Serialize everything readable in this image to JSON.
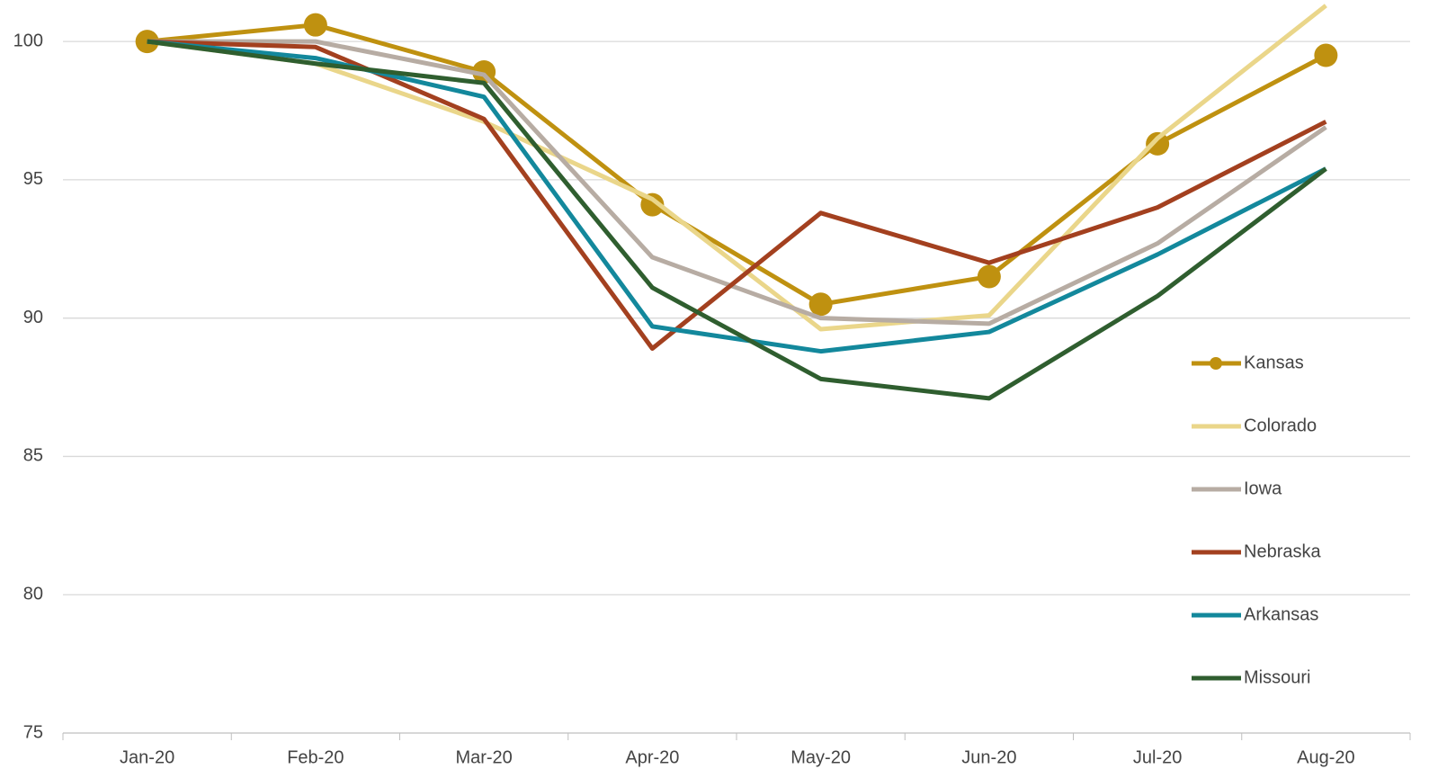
{
  "chart_data": {
    "type": "line",
    "categories": [
      "Jan-20",
      "Feb-20",
      "Mar-20",
      "Apr-20",
      "May-20",
      "Jun-20",
      "Jul-20",
      "Aug-20"
    ],
    "series": [
      {
        "name": "Kansas",
        "color": "#bf9110",
        "marker": true,
        "values": [
          100,
          100.6,
          98.9,
          94.1,
          90.5,
          91.5,
          96.3,
          99.5
        ]
      },
      {
        "name": "Colorado",
        "color": "#ead68a",
        "values": [
          100,
          99.2,
          97.1,
          94.3,
          89.6,
          90.1,
          96.5,
          101.3
        ]
      },
      {
        "name": "Iowa",
        "color": "#b7aca3",
        "values": [
          100,
          100.0,
          98.8,
          92.2,
          90.0,
          89.8,
          92.7,
          96.9
        ]
      },
      {
        "name": "Nebraska",
        "color": "#a3401f",
        "values": [
          100,
          99.8,
          97.2,
          88.9,
          93.8,
          92.0,
          94.0,
          97.1
        ]
      },
      {
        "name": "Arkansas",
        "color": "#13889c",
        "values": [
          100,
          99.4,
          98.0,
          89.7,
          88.8,
          89.5,
          92.3,
          95.4
        ]
      },
      {
        "name": "Missouri",
        "color": "#2f5e2f",
        "values": [
          100,
          99.2,
          98.5,
          91.1,
          87.8,
          87.1,
          90.8,
          95.4
        ]
      }
    ],
    "ylim": [
      75,
      101.5
    ],
    "yticks": [
      75,
      80,
      85,
      90,
      95,
      100
    ],
    "grid": true,
    "legend": "right"
  }
}
